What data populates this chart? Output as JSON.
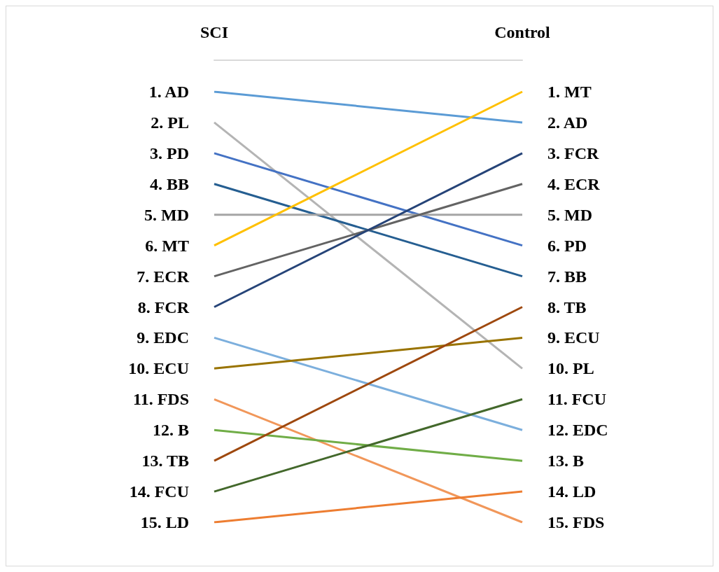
{
  "chart_data": {
    "type": "line",
    "categories": [
      "SCI",
      "Control"
    ],
    "marker": "none",
    "line_style": "solid",
    "grid": false,
    "ylim": [
      15,
      1
    ],
    "yticks": [
      {
        "value": 1,
        "label": "1. AD"
      },
      {
        "value": 2,
        "label": "2. PL"
      },
      {
        "value": 3,
        "label": "3. PD"
      },
      {
        "value": 4,
        "label": "4. BB"
      },
      {
        "value": 5,
        "label": "5. MD"
      },
      {
        "value": 6,
        "label": "6. MT"
      },
      {
        "value": 7,
        "label": "7. ECR"
      },
      {
        "value": 8,
        "label": "8. FCR"
      },
      {
        "value": 9,
        "label": "9. EDC"
      },
      {
        "value": 10,
        "label": "10. ECU"
      },
      {
        "value": 11,
        "label": "11. FDS"
      },
      {
        "value": 12,
        "label": "12. B"
      },
      {
        "value": 13,
        "label": "13. TB"
      },
      {
        "value": 14,
        "label": "14. FCU"
      },
      {
        "value": 15,
        "label": "15. LD"
      }
    ],
    "y2lim": [
      15,
      1
    ],
    "y2ticks": [
      {
        "value": 1,
        "label": "1. MT"
      },
      {
        "value": 2,
        "label": "2. AD"
      },
      {
        "value": 3,
        "label": "3. FCR"
      },
      {
        "value": 4,
        "label": "4. ECR"
      },
      {
        "value": 5,
        "label": "5. MD"
      },
      {
        "value": 6,
        "label": "6. PD"
      },
      {
        "value": 7,
        "label": "7. BB"
      },
      {
        "value": 8,
        "label": "8. TB"
      },
      {
        "value": 9,
        "label": "9. ECU"
      },
      {
        "value": 10,
        "label": "10. PL"
      },
      {
        "value": 11,
        "label": "11. FCU"
      },
      {
        "value": 12,
        "label": "12. EDC"
      },
      {
        "value": 13,
        "label": "13. B"
      },
      {
        "value": 14,
        "label": "14. LD"
      },
      {
        "value": 15,
        "label": "15. FDS"
      }
    ],
    "series": [
      {
        "color": "#5b9bd5",
        "values": [
          1,
          2
        ]
      },
      {
        "color": "#b4b4b4",
        "values": [
          2,
          10
        ]
      },
      {
        "color": "#4472c4",
        "values": [
          3,
          6
        ]
      },
      {
        "color": "#255e91",
        "values": [
          4,
          7
        ]
      },
      {
        "color": "#a5a5a5",
        "values": [
          5,
          5
        ]
      },
      {
        "color": "#ffc000",
        "values": [
          6,
          1
        ]
      },
      {
        "color": "#636363",
        "values": [
          7,
          4
        ]
      },
      {
        "color": "#264478",
        "values": [
          8,
          3
        ]
      },
      {
        "color": "#7cafdd",
        "values": [
          9,
          12
        ]
      },
      {
        "color": "#997300",
        "values": [
          10,
          9
        ]
      },
      {
        "color": "#f1975a",
        "values": [
          11,
          15
        ]
      },
      {
        "color": "#70ad47",
        "values": [
          12,
          13
        ]
      },
      {
        "color": "#9e480e",
        "values": [
          13,
          8
        ]
      },
      {
        "color": "#43682b",
        "values": [
          14,
          11
        ]
      },
      {
        "color": "#ed7d31",
        "values": [
          15,
          14
        ]
      }
    ]
  }
}
